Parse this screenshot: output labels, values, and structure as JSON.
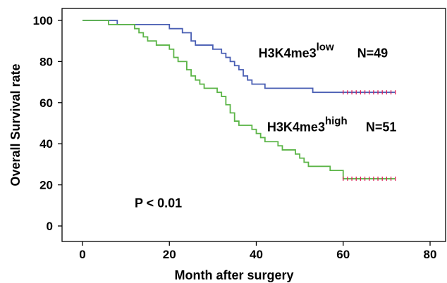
{
  "chart_data": {
    "type": "line",
    "subtype": "kaplan-meier",
    "xlabel": "Month after surgery",
    "ylabel": "Overall Survival rate",
    "xlim": [
      0,
      80
    ],
    "ylim": [
      0,
      100
    ],
    "xticks": [
      0,
      20,
      40,
      60,
      80
    ],
    "yticks": [
      0,
      20,
      40,
      60,
      80,
      100
    ],
    "grid": false,
    "annotations": [
      {
        "text": "P < 0.01",
        "x": 12,
        "y": 9
      }
    ],
    "series": [
      {
        "name": "H3K4me3",
        "name_superscript": "low",
        "n_label": "N=49",
        "color": "#4a5fb4",
        "censor_color": "#e0205a",
        "steps": [
          [
            0,
            100
          ],
          [
            8,
            98
          ],
          [
            20,
            96
          ],
          [
            23,
            94
          ],
          [
            25,
            90
          ],
          [
            26,
            88
          ],
          [
            30,
            86
          ],
          [
            32,
            84
          ],
          [
            33,
            82
          ],
          [
            34,
            80
          ],
          [
            35,
            78
          ],
          [
            36,
            76
          ],
          [
            37,
            73
          ],
          [
            38,
            71
          ],
          [
            39,
            69
          ],
          [
            42,
            67
          ],
          [
            53,
            65
          ],
          [
            72,
            65
          ]
        ],
        "censored_x": [
          60,
          61,
          62,
          63,
          64,
          65,
          66,
          67,
          68,
          69,
          70,
          71,
          72
        ],
        "label_pos": {
          "x": 40.5,
          "y": 82
        }
      },
      {
        "name": "H3K4me3",
        "name_superscript": "high",
        "n_label": "N=51",
        "color": "#5cb548",
        "censor_color": "#e0205a",
        "steps": [
          [
            0,
            100
          ],
          [
            6,
            98
          ],
          [
            12,
            96
          ],
          [
            13,
            94
          ],
          [
            14,
            92
          ],
          [
            15,
            90
          ],
          [
            17,
            88
          ],
          [
            20,
            86
          ],
          [
            21,
            82
          ],
          [
            22,
            80
          ],
          [
            24,
            76
          ],
          [
            25,
            73
          ],
          [
            26,
            71
          ],
          [
            27,
            69
          ],
          [
            28,
            67
          ],
          [
            31,
            65
          ],
          [
            32,
            63
          ],
          [
            33,
            59
          ],
          [
            34,
            55
          ],
          [
            35,
            51
          ],
          [
            36,
            49
          ],
          [
            39,
            47
          ],
          [
            40,
            45
          ],
          [
            41,
            43
          ],
          [
            42,
            41
          ],
          [
            45,
            39
          ],
          [
            46,
            37
          ],
          [
            49,
            35
          ],
          [
            50,
            33
          ],
          [
            51,
            31
          ],
          [
            52,
            29
          ],
          [
            57,
            27
          ],
          [
            60,
            23
          ],
          [
            72,
            23
          ]
        ],
        "censored_x": [
          60,
          61,
          62,
          63,
          64,
          65,
          66,
          67,
          68,
          69,
          70,
          71,
          72
        ],
        "label_pos": {
          "x": 42.5,
          "y": 46
        }
      }
    ]
  }
}
